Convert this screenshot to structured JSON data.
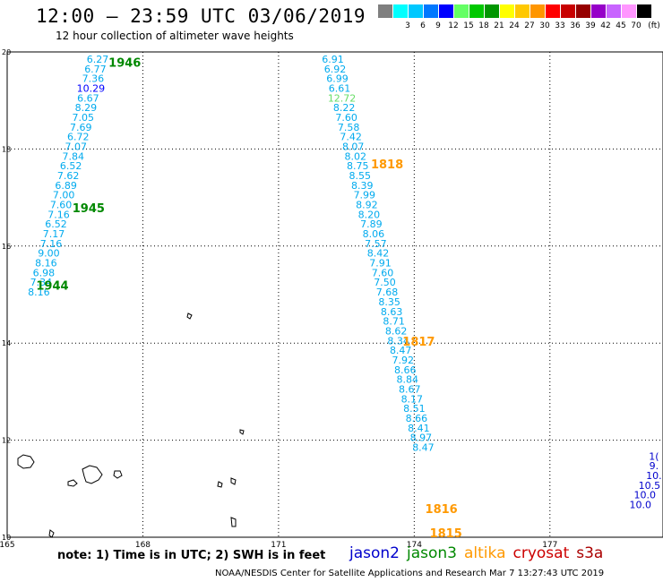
{
  "title": "12:00 – 23:59 UTC 03/06/2019",
  "subtitle": "12 hour collection of altimeter wave heights",
  "legend": {
    "unit_label": "(ft)",
    "bins": [
      {
        "label": "",
        "color": "#7f7f7f"
      },
      {
        "label": "3",
        "color": "#00ffff"
      },
      {
        "label": "6",
        "color": "#00c8ff"
      },
      {
        "label": "9",
        "color": "#0078ff"
      },
      {
        "label": "12",
        "color": "#0000ff"
      },
      {
        "label": "15",
        "color": "#64ff64"
      },
      {
        "label": "18",
        "color": "#00c800"
      },
      {
        "label": "21",
        "color": "#009600"
      },
      {
        "label": "24",
        "color": "#ffff00"
      },
      {
        "label": "27",
        "color": "#ffc800"
      },
      {
        "label": "30",
        "color": "#ff9600"
      },
      {
        "label": "33",
        "color": "#ff0000"
      },
      {
        "label": "36",
        "color": "#c80000"
      },
      {
        "label": "39",
        "color": "#960000"
      },
      {
        "label": "42",
        "color": "#9600c8"
      },
      {
        "label": "45",
        "color": "#c864ff"
      },
      {
        "label": "70",
        "color": "#ff96ff"
      },
      {
        "label": "",
        "color": "#000000"
      }
    ]
  },
  "axes": {
    "lon_ticks": [
      "165",
      "168",
      "171",
      "174",
      "177"
    ],
    "lat_ticks": [
      "20",
      "18",
      "16",
      "14",
      "12",
      "10"
    ]
  },
  "chart_data": {
    "type": "scatter",
    "x_range": [
      165,
      179.5
    ],
    "y_range": [
      10,
      20
    ],
    "units": "ft",
    "tracks": [
      {
        "satellite": "jason3",
        "color": "#008800",
        "time_labels": [
          {
            "text": "1946",
            "lon": 167.6,
            "lat": 19.7
          },
          {
            "text": "1945",
            "lon": 166.8,
            "lat": 16.7
          },
          {
            "text": "1944",
            "lon": 166.0,
            "lat": 15.1
          }
        ],
        "points": [
          {
            "lon": 167.0,
            "lat": 19.78,
            "swh": "6.27"
          },
          {
            "lon": 166.95,
            "lat": 19.58,
            "swh": "6.77"
          },
          {
            "lon": 166.9,
            "lat": 19.38,
            "swh": "7.36"
          },
          {
            "lon": 166.85,
            "lat": 19.18,
            "swh": "10.29",
            "color": "#0000ff"
          },
          {
            "lon": 166.79,
            "lat": 18.98,
            "swh": "6.67"
          },
          {
            "lon": 166.74,
            "lat": 18.78,
            "swh": "8.29"
          },
          {
            "lon": 166.68,
            "lat": 18.58,
            "swh": "7.05"
          },
          {
            "lon": 166.63,
            "lat": 18.38,
            "swh": "7.69"
          },
          {
            "lon": 166.57,
            "lat": 18.18,
            "swh": "6.72"
          },
          {
            "lon": 166.52,
            "lat": 17.98,
            "swh": "7.07"
          },
          {
            "lon": 166.46,
            "lat": 17.78,
            "swh": "7.84"
          },
          {
            "lon": 166.41,
            "lat": 17.58,
            "swh": "6.52"
          },
          {
            "lon": 166.35,
            "lat": 17.38,
            "swh": "7.62"
          },
          {
            "lon": 166.3,
            "lat": 17.18,
            "swh": "6.89"
          },
          {
            "lon": 166.25,
            "lat": 16.98,
            "swh": "7.00"
          },
          {
            "lon": 166.19,
            "lat": 16.78,
            "swh": "7.60"
          },
          {
            "lon": 166.14,
            "lat": 16.58,
            "swh": "7.16"
          },
          {
            "lon": 166.08,
            "lat": 16.38,
            "swh": "6.52"
          },
          {
            "lon": 166.03,
            "lat": 16.18,
            "swh": "7.17"
          },
          {
            "lon": 165.97,
            "lat": 15.98,
            "swh": "7.16"
          },
          {
            "lon": 165.92,
            "lat": 15.78,
            "swh": "9.00"
          },
          {
            "lon": 165.86,
            "lat": 15.58,
            "swh": "8.16"
          },
          {
            "lon": 165.81,
            "lat": 15.38,
            "swh": "6.98"
          },
          {
            "lon": 165.75,
            "lat": 15.18,
            "swh": "7.34"
          },
          {
            "lon": 165.7,
            "lat": 14.98,
            "swh": "8.16"
          }
        ]
      },
      {
        "satellite": "altika",
        "color": "#ff9900",
        "time_labels": [
          {
            "text": "1818",
            "lon": 173.4,
            "lat": 17.6
          },
          {
            "text": "1817",
            "lon": 174.1,
            "lat": 13.95
          },
          {
            "text": "1816",
            "lon": 174.6,
            "lat": 10.5
          },
          {
            "text": "1815",
            "lon": 174.7,
            "lat": 10.0
          }
        ],
        "points": [
          {
            "lon": 172.2,
            "lat": 19.78,
            "swh": "6.91"
          },
          {
            "lon": 172.25,
            "lat": 19.58,
            "swh": "6.92"
          },
          {
            "lon": 172.3,
            "lat": 19.38,
            "swh": "6.99"
          },
          {
            "lon": 172.35,
            "lat": 19.18,
            "swh": "6.61"
          },
          {
            "lon": 172.4,
            "lat": 18.98,
            "swh": "12.72",
            "color": "#66dd66"
          },
          {
            "lon": 172.45,
            "lat": 18.78,
            "swh": "8.22"
          },
          {
            "lon": 172.5,
            "lat": 18.58,
            "swh": "7.60"
          },
          {
            "lon": 172.55,
            "lat": 18.38,
            "swh": "7.58"
          },
          {
            "lon": 172.6,
            "lat": 18.18,
            "swh": "7.42"
          },
          {
            "lon": 172.65,
            "lat": 17.98,
            "swh": "8.07"
          },
          {
            "lon": 172.7,
            "lat": 17.78,
            "swh": "8.02"
          },
          {
            "lon": 172.75,
            "lat": 17.58,
            "swh": "8.75"
          },
          {
            "lon": 172.8,
            "lat": 17.38,
            "swh": "8.55"
          },
          {
            "lon": 172.85,
            "lat": 17.18,
            "swh": "8.39"
          },
          {
            "lon": 172.9,
            "lat": 16.98,
            "swh": "7.99"
          },
          {
            "lon": 172.95,
            "lat": 16.78,
            "swh": "8.92"
          },
          {
            "lon": 173.0,
            "lat": 16.58,
            "swh": "8.20"
          },
          {
            "lon": 173.05,
            "lat": 16.38,
            "swh": "7.89"
          },
          {
            "lon": 173.1,
            "lat": 16.18,
            "swh": "8.06"
          },
          {
            "lon": 173.15,
            "lat": 15.98,
            "swh": "7.57"
          },
          {
            "lon": 173.2,
            "lat": 15.78,
            "swh": "8.42"
          },
          {
            "lon": 173.25,
            "lat": 15.58,
            "swh": "7.91"
          },
          {
            "lon": 173.3,
            "lat": 15.38,
            "swh": "7.60"
          },
          {
            "lon": 173.35,
            "lat": 15.18,
            "swh": "7.50"
          },
          {
            "lon": 173.4,
            "lat": 14.98,
            "swh": "7.68"
          },
          {
            "lon": 173.45,
            "lat": 14.78,
            "swh": "8.35"
          },
          {
            "lon": 173.5,
            "lat": 14.58,
            "swh": "8.63"
          },
          {
            "lon": 173.55,
            "lat": 14.38,
            "swh": "8.71"
          },
          {
            "lon": 173.6,
            "lat": 14.18,
            "swh": "8.62"
          },
          {
            "lon": 173.65,
            "lat": 13.98,
            "swh": "8.34"
          },
          {
            "lon": 173.7,
            "lat": 13.78,
            "swh": "8.47"
          },
          {
            "lon": 173.75,
            "lat": 13.58,
            "swh": "7.92"
          },
          {
            "lon": 173.8,
            "lat": 13.38,
            "swh": "8.66"
          },
          {
            "lon": 173.85,
            "lat": 13.18,
            "swh": "8.84"
          },
          {
            "lon": 173.9,
            "lat": 12.98,
            "swh": "8.67"
          },
          {
            "lon": 173.95,
            "lat": 12.78,
            "swh": "8.17"
          },
          {
            "lon": 174.0,
            "lat": 12.58,
            "swh": "8.51"
          },
          {
            "lon": 174.05,
            "lat": 12.38,
            "swh": "8.66"
          },
          {
            "lon": 174.1,
            "lat": 12.18,
            "swh": "8.41"
          },
          {
            "lon": 174.15,
            "lat": 11.98,
            "swh": "8.97"
          },
          {
            "lon": 174.2,
            "lat": 11.78,
            "swh": "8.47"
          }
        ]
      },
      {
        "satellite": "jason2",
        "color": "#0000cc",
        "time_labels": [],
        "points": [
          {
            "lon": 179.3,
            "lat": 11.6,
            "swh": "1("
          },
          {
            "lon": 179.3,
            "lat": 11.4,
            "swh": "9."
          },
          {
            "lon": 179.3,
            "lat": 11.2,
            "swh": "10."
          },
          {
            "lon": 179.2,
            "lat": 11.0,
            "swh": "10.5"
          },
          {
            "lon": 179.1,
            "lat": 10.8,
            "swh": "10.0"
          },
          {
            "lon": 179.0,
            "lat": 10.6,
            "swh": "10.0"
          }
        ]
      }
    ]
  },
  "note": "note: 1) Time is in UTC; 2) SWH is in feet",
  "satellites": [
    {
      "name": "jason2",
      "color": "#0000cc"
    },
    {
      "name": "jason3",
      "color": "#008800"
    },
    {
      "name": "altika",
      "color": "#ff9900"
    },
    {
      "name": "cryosat",
      "color": "#cc0000"
    },
    {
      "name": "s3a",
      "color": "#aa0000"
    }
  ],
  "credit": "NOAA/NESDIS Center for Satellite Applications and Research   Mar  7 13:27:43 UTC 2019"
}
